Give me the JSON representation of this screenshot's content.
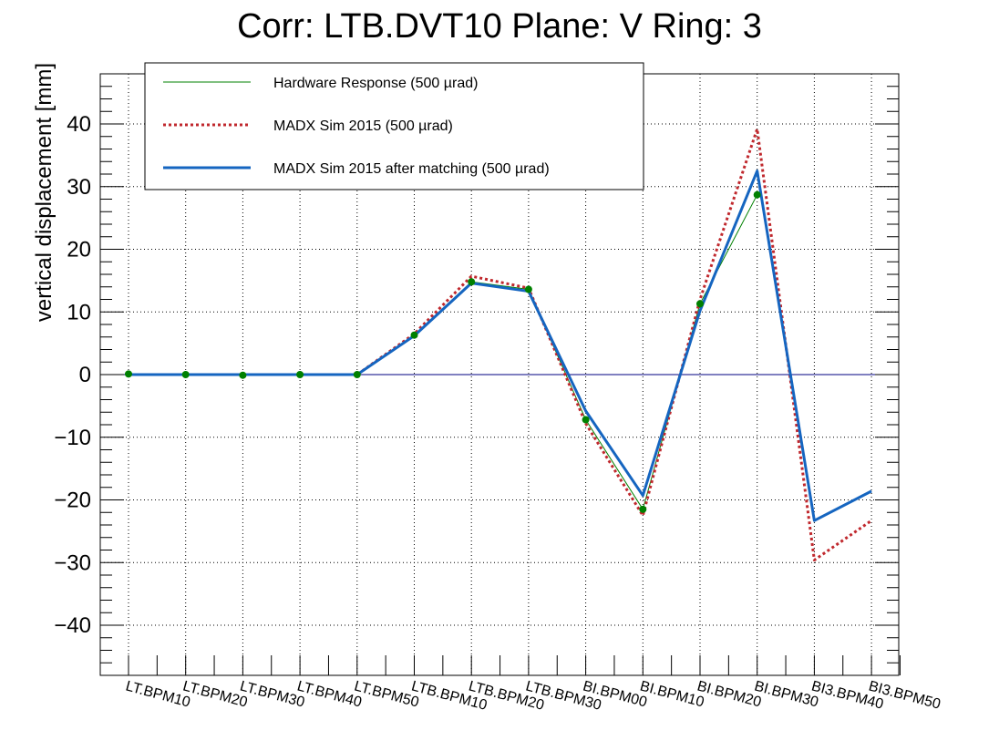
{
  "chart_data": {
    "type": "line",
    "title": "Corr: LTB.DVT10 Plane: V Ring: 3",
    "xlabel": "",
    "ylabel": "vertical displacement [mm]",
    "ylim": [
      -48,
      48
    ],
    "yticks": [
      -40,
      -30,
      -20,
      -10,
      0,
      10,
      20,
      30,
      40
    ],
    "ytick_labels": [
      "−40",
      "−30",
      "−20",
      "−10",
      "0",
      "10",
      "20",
      "30",
      "40"
    ],
    "grid": true,
    "legend_position": "top-left",
    "categories": [
      "LT.BPM10",
      "LT.BPM20",
      "LT.BPM30",
      "LT.BPM40",
      "LT.BPM50",
      "LTB.BPM10",
      "LTB.BPM20",
      "LTB.BPM30",
      "BI.BPM00",
      "BI.BPM10",
      "BI.BPM20",
      "BI.BPM30",
      "BI3.BPM40",
      "BI3.BPM50"
    ],
    "series": [
      {
        "name": "Hardware Response (500 µrad)",
        "color": "#008000",
        "style": "solid-thin-markers",
        "values": [
          0.1,
          0.0,
          -0.1,
          0.0,
          0.0,
          6.3,
          14.8,
          13.6,
          -7.2,
          -21.5,
          11.3,
          28.7,
          null,
          null
        ]
      },
      {
        "name": "MADX Sim 2015 (500 µrad)",
        "color": "#c0282d",
        "style": "dotted",
        "values": [
          0.0,
          0.0,
          0.0,
          0.0,
          0.0,
          6.5,
          15.7,
          13.8,
          -7.8,
          -22.5,
          12.0,
          39.2,
          -29.6,
          -23.3
        ]
      },
      {
        "name": "MADX Sim 2015 after matching (500 µrad)",
        "color": "#1565c0",
        "style": "solid-thick",
        "values": [
          0.0,
          0.0,
          0.0,
          0.0,
          0.0,
          6.2,
          14.6,
          13.3,
          -5.8,
          -19.3,
          10.2,
          32.5,
          -23.3,
          -18.6
        ]
      }
    ],
    "zero_line_color": "#000080"
  }
}
